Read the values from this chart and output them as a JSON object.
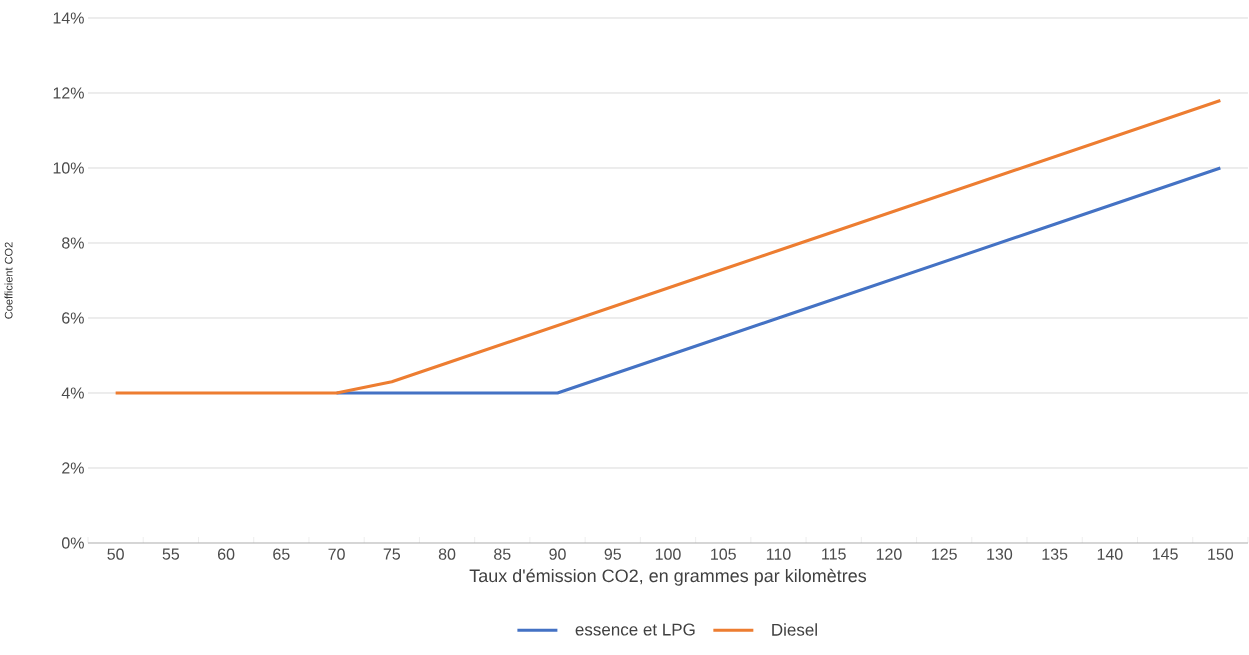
{
  "chart_data": {
    "type": "line",
    "xlabel": "Taux d'émission CO2, en grammes par kilomètres",
    "ylabel": "Coefficient CO2",
    "categories": [
      "50",
      "55",
      "60",
      "65",
      "70",
      "75",
      "80",
      "85",
      "90",
      "95",
      "100",
      "105",
      "110",
      "115",
      "120",
      "125",
      "130",
      "135",
      "140",
      "145",
      "150"
    ],
    "series": [
      {
        "name": "essence et LPG",
        "color": "#4472c4",
        "values": [
          null,
          null,
          null,
          null,
          4,
          4,
          4,
          4,
          4,
          4.5,
          5,
          5.5,
          6,
          6.5,
          7,
          7.5,
          8,
          8.5,
          9,
          9.5,
          10
        ]
      },
      {
        "name": "Diesel",
        "color": "#ed7d31",
        "values": [
          4,
          4,
          4,
          4,
          4,
          4.3,
          4.8,
          5.3,
          5.8,
          6.3,
          6.8,
          7.3,
          7.8,
          8.3,
          8.8,
          9.3,
          9.8,
          10.3,
          10.8,
          11.3,
          11.8
        ]
      }
    ],
    "ylim": [
      0,
      14
    ],
    "yticks": [
      {
        "value": 0,
        "label": "0%"
      },
      {
        "value": 2,
        "label": "2%"
      },
      {
        "value": 4,
        "label": "4%"
      },
      {
        "value": 6,
        "label": "6%"
      },
      {
        "value": 8,
        "label": "8%"
      },
      {
        "value": 10,
        "label": "10%"
      },
      {
        "value": 12,
        "label": "12%"
      },
      {
        "value": 14,
        "label": "14%"
      }
    ],
    "grid": "y",
    "legend": "bottom",
    "marker": "none",
    "line_style": "solid"
  }
}
